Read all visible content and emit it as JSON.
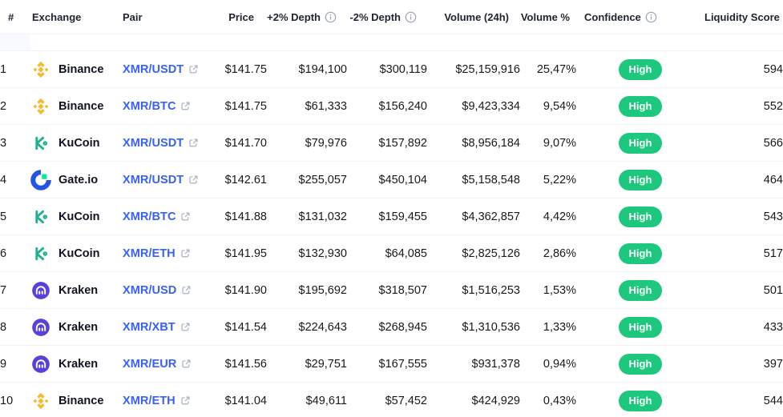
{
  "colors": {
    "pair_link": "#3861fb",
    "confidence_high": "#1ec77e",
    "binance_yellow": "#f3ba2f",
    "kucoin_green": "#23af91",
    "gateio_blue": "#2354e6",
    "gateio_green": "#17e0a4",
    "kraken_purple": "#5741d9",
    "row_border": "#f0f2f6",
    "header_text": "#1e2330",
    "body_text": "#16181d"
  },
  "table": {
    "columns": [
      {
        "label": "#",
        "info": false
      },
      {
        "label": "Exchange",
        "info": false
      },
      {
        "label": "Pair",
        "info": false
      },
      {
        "label": "Price",
        "info": false
      },
      {
        "label": "+2% Depth",
        "info": true
      },
      {
        "label": "-2% Depth",
        "info": true
      },
      {
        "label": "Volume (24h)",
        "info": false
      },
      {
        "label": "Volume %",
        "info": false
      },
      {
        "label": "Confidence",
        "info": true
      },
      {
        "label": "Liquidity Score",
        "info": true
      }
    ],
    "rows": [
      {
        "rank": "1",
        "exchange": "Binance",
        "exchange_icon": "binance-icon",
        "pair": "XMR/USDT",
        "price": "$141.75",
        "plus_depth": "$194,100",
        "minus_depth": "$300,119",
        "volume": "$25,159,916",
        "volume_pct": "25,47%",
        "confidence": "High",
        "liquidity": "594"
      },
      {
        "rank": "2",
        "exchange": "Binance",
        "exchange_icon": "binance-icon",
        "pair": "XMR/BTC",
        "price": "$141.75",
        "plus_depth": "$61,333",
        "minus_depth": "$156,240",
        "volume": "$9,423,334",
        "volume_pct": "9,54%",
        "confidence": "High",
        "liquidity": "552"
      },
      {
        "rank": "3",
        "exchange": "KuCoin",
        "exchange_icon": "kucoin-icon",
        "pair": "XMR/USDT",
        "price": "$141.70",
        "plus_depth": "$79,976",
        "minus_depth": "$157,892",
        "volume": "$8,956,184",
        "volume_pct": "9,07%",
        "confidence": "High",
        "liquidity": "566"
      },
      {
        "rank": "4",
        "exchange": "Gate.io",
        "exchange_icon": "gateio-icon",
        "pair": "XMR/USDT",
        "price": "$142.61",
        "plus_depth": "$255,057",
        "minus_depth": "$450,104",
        "volume": "$5,158,548",
        "volume_pct": "5,22%",
        "confidence": "High",
        "liquidity": "464"
      },
      {
        "rank": "5",
        "exchange": "KuCoin",
        "exchange_icon": "kucoin-icon",
        "pair": "XMR/BTC",
        "price": "$141.88",
        "plus_depth": "$131,032",
        "minus_depth": "$159,455",
        "volume": "$4,362,857",
        "volume_pct": "4,42%",
        "confidence": "High",
        "liquidity": "543"
      },
      {
        "rank": "6",
        "exchange": "KuCoin",
        "exchange_icon": "kucoin-icon",
        "pair": "XMR/ETH",
        "price": "$141.95",
        "plus_depth": "$132,930",
        "minus_depth": "$64,085",
        "volume": "$2,825,126",
        "volume_pct": "2,86%",
        "confidence": "High",
        "liquidity": "517"
      },
      {
        "rank": "7",
        "exchange": "Kraken",
        "exchange_icon": "kraken-icon",
        "pair": "XMR/USD",
        "price": "$141.90",
        "plus_depth": "$195,692",
        "minus_depth": "$318,507",
        "volume": "$1,516,253",
        "volume_pct": "1,53%",
        "confidence": "High",
        "liquidity": "501"
      },
      {
        "rank": "8",
        "exchange": "Kraken",
        "exchange_icon": "kraken-icon",
        "pair": "XMR/XBT",
        "price": "$141.54",
        "plus_depth": "$224,643",
        "minus_depth": "$268,945",
        "volume": "$1,310,536",
        "volume_pct": "1,33%",
        "confidence": "High",
        "liquidity": "433"
      },
      {
        "rank": "9",
        "exchange": "Kraken",
        "exchange_icon": "kraken-icon",
        "pair": "XMR/EUR",
        "price": "$141.56",
        "plus_depth": "$29,751",
        "minus_depth": "$167,555",
        "volume": "$931,378",
        "volume_pct": "0,94%",
        "confidence": "High",
        "liquidity": "397"
      },
      {
        "rank": "10",
        "exchange": "Binance",
        "exchange_icon": "binance-icon",
        "pair": "XMR/ETH",
        "price": "$141.04",
        "plus_depth": "$49,611",
        "minus_depth": "$57,452",
        "volume": "$424,929",
        "volume_pct": "0,43%",
        "confidence": "High",
        "liquidity": "544"
      }
    ]
  }
}
